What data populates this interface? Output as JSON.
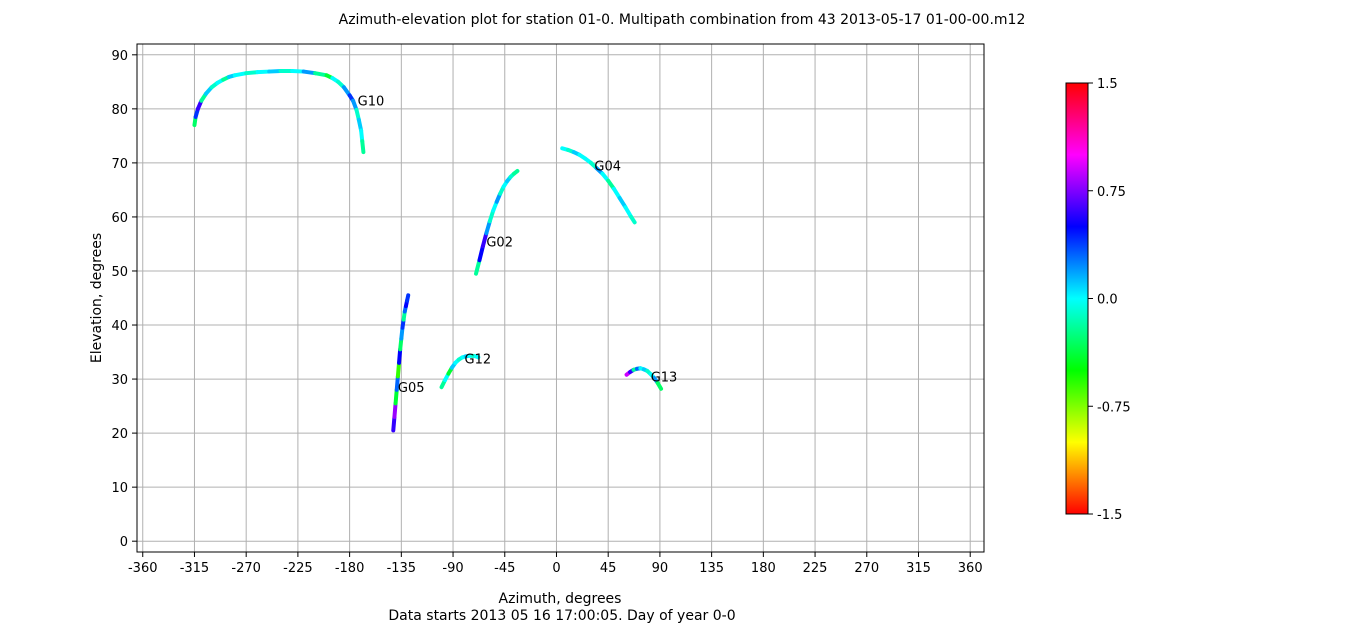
{
  "chart_data": {
    "type": "scatter",
    "title": "Azimuth-elevation plot for station 01-0.   Multipath combination from 43 2013-05-17 01-00-00.m12",
    "xlabel": "Azimuth, degrees",
    "subtitle": "Data starts 2013 05 16 17:00:05.  Day of year 0-0",
    "ylabel": "Elevation, degrees",
    "xlim": [
      -365,
      372
    ],
    "ylim": [
      -2,
      92
    ],
    "grid": true,
    "xticks": [
      -360,
      -315,
      -270,
      -225,
      -180,
      -135,
      -90,
      -45,
      0,
      45,
      90,
      135,
      180,
      225,
      270,
      315,
      360
    ],
    "xtick_labels": [
      "-360",
      "-315",
      "-270",
      "-225",
      "-180",
      "-135",
      "-90",
      "-45",
      "0",
      "45",
      "90",
      "135",
      "180",
      "225",
      "270",
      "315",
      "360"
    ],
    "yticks": [
      0,
      10,
      20,
      30,
      40,
      50,
      60,
      70,
      80,
      90
    ],
    "ytick_labels": [
      "0",
      "10",
      "20",
      "30",
      "40",
      "50",
      "60",
      "70",
      "80",
      "90"
    ],
    "colorbar": {
      "min": -1.5,
      "max": 1.5,
      "ticks": [
        1.5,
        0.75,
        0.0,
        -0.75,
        -1.5
      ],
      "tick_labels": [
        "1.5",
        "0.75",
        "0.0",
        "-0.75",
        "-1.5"
      ],
      "colormap": "hsv"
    },
    "series": [
      {
        "name": "G10",
        "label": "G10",
        "label_at": [
          -173,
          81.5
        ],
        "az": [
          -315,
          -314,
          -312,
          -309,
          -305,
          -300,
          -295,
          -290,
          -285,
          -280,
          -270,
          -260,
          -250,
          -240,
          -230,
          -220,
          -210,
          -200,
          -195,
          -190,
          -185,
          -180,
          -177,
          -174,
          -172,
          -170,
          -169,
          -168
        ],
        "el": [
          77,
          78.5,
          80,
          81.5,
          82.8,
          84,
          84.8,
          85.4,
          85.9,
          86.2,
          86.6,
          86.8,
          86.9,
          87,
          87,
          86.9,
          86.6,
          86.2,
          85.7,
          85,
          84,
          82.5,
          81.5,
          79.8,
          78,
          76,
          74,
          72
        ],
        "mp": [
          -0.3,
          0.4,
          0.6,
          -0.2,
          0.1,
          -0.1,
          0.0,
          -0.2,
          0.1,
          0.0,
          -0.1,
          0.0,
          0.1,
          -0.1,
          0.0,
          0.2,
          -0.2,
          -0.4,
          0.0,
          -0.1,
          0.2,
          0.4,
          0.2,
          -0.1,
          0.1,
          0.0,
          -0.2,
          -0.3
        ]
      },
      {
        "name": "G04",
        "label": "G04",
        "label_at": [
          33,
          69.5
        ],
        "az": [
          5,
          10,
          15,
          20,
          25,
          30,
          35,
          40,
          45,
          50,
          55,
          60,
          65,
          68
        ],
        "el": [
          72.7,
          72.4,
          72,
          71.5,
          70.8,
          70,
          69,
          68,
          66.7,
          65.2,
          63.5,
          61.8,
          60,
          59
        ],
        "mp": [
          0.0,
          -0.1,
          0.1,
          0.0,
          0.0,
          -0.1,
          0.2,
          0.0,
          -0.2,
          0.0,
          0.1,
          0.0,
          -0.1,
          0.6
        ]
      },
      {
        "name": "G02",
        "label": "G02",
        "label_at": [
          -61,
          55.5
        ],
        "az": [
          -70,
          -67,
          -64,
          -61,
          -58,
          -55,
          -52,
          -49,
          -46,
          -43,
          -40,
          -37,
          -34
        ],
        "el": [
          49.5,
          52,
          54.6,
          57,
          59.2,
          61.2,
          62.8,
          64.3,
          65.6,
          66.6,
          67.4,
          68,
          68.5
        ],
        "mp": [
          -0.2,
          0.5,
          0.6,
          0.2,
          -0.1,
          0.0,
          0.2,
          -0.1,
          0.0,
          0.1,
          -0.1,
          -0.2,
          0.0
        ]
      },
      {
        "name": "G05",
        "label": "G05",
        "label_at": [
          -138,
          28.5
        ],
        "az": [
          -142,
          -141,
          -140,
          -139,
          -138,
          -137,
          -136,
          -135,
          -134,
          -133,
          -132,
          -131,
          -130,
          -129
        ],
        "el": [
          20.5,
          23,
          25.5,
          28,
          30.5,
          33,
          35.5,
          37.5,
          39.5,
          41,
          42.5,
          43.5,
          44.5,
          45.5
        ],
        "mp": [
          0.6,
          0.8,
          -0.4,
          0.3,
          -0.6,
          0.5,
          -0.3,
          0.2,
          0.4,
          -0.2,
          0.3,
          0.5,
          0.4,
          0.9
        ]
      },
      {
        "name": "G12",
        "label": "G12",
        "label_at": [
          -80,
          33.8
        ],
        "az": [
          -100,
          -97,
          -94,
          -91,
          -88,
          -85,
          -82,
          -79,
          -76,
          -73,
          -70,
          -68
        ],
        "el": [
          28.5,
          29.8,
          31,
          32.1,
          33,
          33.6,
          34,
          34.2,
          34.3,
          34.3,
          34.2,
          34
        ],
        "mp": [
          -0.2,
          0.0,
          -0.4,
          0.1,
          0.0,
          -0.1,
          0.0,
          0.1,
          0.0,
          -0.1,
          0.0,
          0.1
        ]
      },
      {
        "name": "G13",
        "label": "G13",
        "label_at": [
          82,
          30.5
        ],
        "az": [
          61,
          64,
          67,
          70,
          73,
          76,
          79,
          82,
          85,
          88,
          91
        ],
        "el": [
          30.8,
          31.3,
          31.7,
          31.9,
          32,
          31.8,
          31.5,
          30.9,
          30.2,
          29.3,
          28.2
        ],
        "mp": [
          0.9,
          0.6,
          -0.2,
          0.3,
          0.0,
          0.1,
          -0.1,
          0.0,
          0.2,
          -0.3,
          -0.1
        ]
      }
    ]
  }
}
